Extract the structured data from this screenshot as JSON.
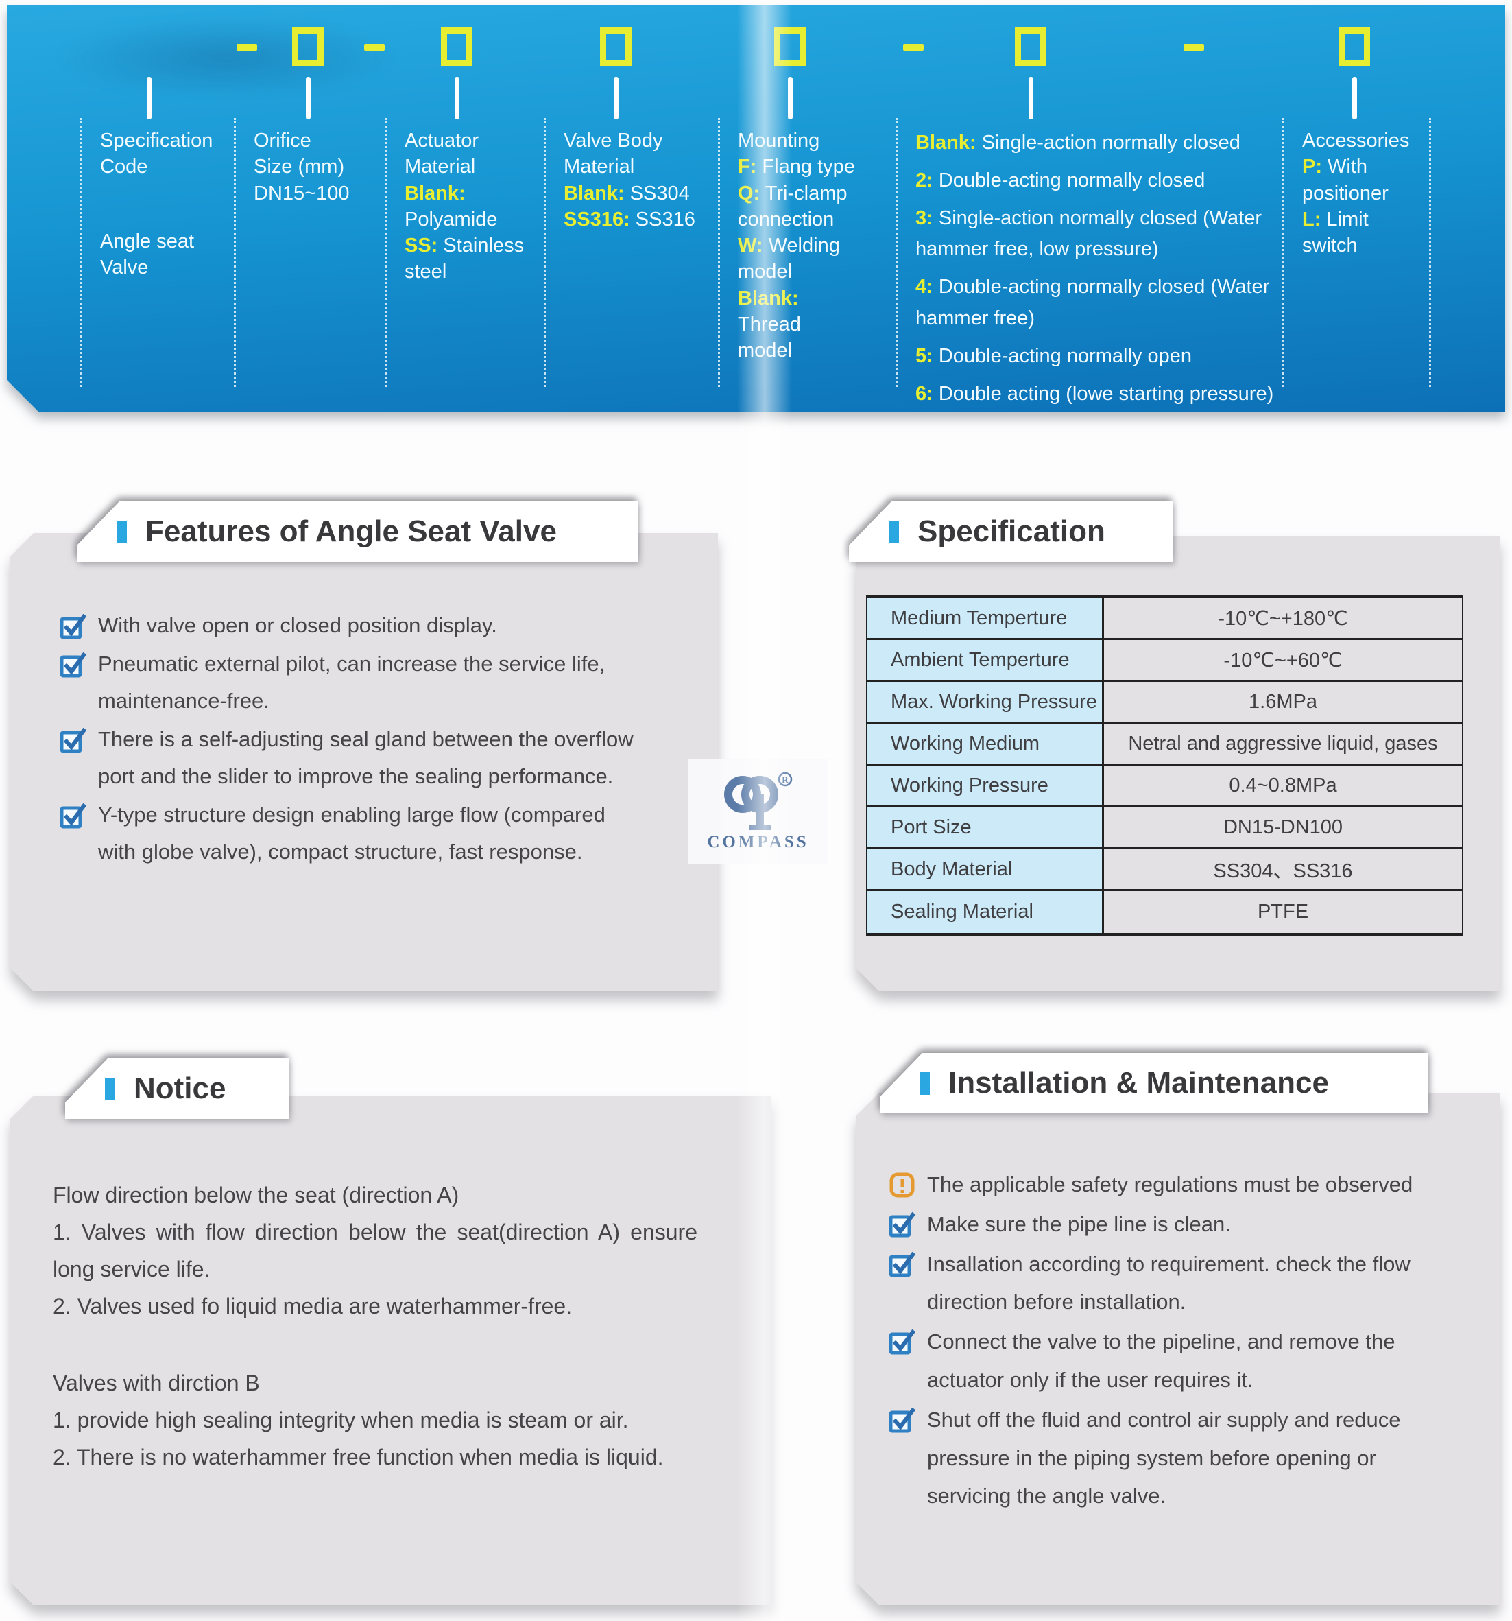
{
  "colors": {
    "accent_blue": "#2aa7e1",
    "code_yellow": "#e7ee32",
    "header_top": "#29a9e0",
    "header_bottom": "#0d70b6",
    "table_label_bg": "#cdeaf9",
    "logo_color": "#5b7ba8",
    "title_text": "#39393c"
  },
  "header": {
    "product_label_lines": [
      "Specification Code",
      "Angle seat Valve"
    ],
    "columns": [
      {
        "paras": [
          {
            "runs": [
              {
                "t": "Specification"
              }
            ]
          },
          {
            "runs": [
              {
                "t": "Code"
              }
            ]
          },
          {
            "gap": true
          },
          {
            "runs": [
              {
                "t": "Angle seat"
              }
            ]
          },
          {
            "runs": [
              {
                "t": "Valve"
              }
            ]
          }
        ]
      },
      {
        "paras": [
          {
            "runs": [
              {
                "t": "Orifice"
              }
            ]
          },
          {
            "runs": [
              {
                "t": "Size (mm)"
              }
            ]
          },
          {
            "runs": [
              {
                "t": "DN15~100"
              }
            ]
          }
        ]
      },
      {
        "paras": [
          {
            "runs": [
              {
                "t": "Actuator"
              }
            ]
          },
          {
            "runs": [
              {
                "t": "Material"
              }
            ]
          },
          {
            "runs": [
              {
                "t": "Blank:",
                "y": 1
              }
            ]
          },
          {
            "runs": [
              {
                "t": "Polyamide"
              }
            ]
          },
          {
            "runs": [
              {
                "t": "SS:",
                "y": 1
              },
              {
                "t": " Stainless"
              }
            ]
          },
          {
            "runs": [
              {
                "t": "steel"
              }
            ]
          }
        ]
      },
      {
        "paras": [
          {
            "runs": [
              {
                "t": "Valve Body"
              }
            ]
          },
          {
            "runs": [
              {
                "t": "Material"
              }
            ]
          },
          {
            "runs": [
              {
                "t": "Blank:",
                "y": 1
              },
              {
                "t": " SS304"
              }
            ]
          },
          {
            "runs": [
              {
                "t": "SS316:",
                "y": 1
              },
              {
                "t": " SS316"
              }
            ]
          }
        ]
      },
      {
        "paras": [
          {
            "runs": [
              {
                "t": "Mounting"
              }
            ]
          },
          {
            "runs": [
              {
                "t": "F:",
                "y": 1
              },
              {
                "t": " Flang type"
              }
            ]
          },
          {
            "runs": [
              {
                "t": "Q:",
                "y": 1
              },
              {
                "t": " Tri-clamp"
              }
            ]
          },
          {
            "runs": [
              {
                "t": "connection"
              }
            ]
          },
          {
            "runs": [
              {
                "t": "W:",
                "y": 1
              },
              {
                "t": " Welding"
              }
            ]
          },
          {
            "runs": [
              {
                "t": "model"
              }
            ]
          },
          {
            "runs": [
              {
                "t": "Blank:",
                "y": 1
              }
            ]
          },
          {
            "runs": [
              {
                "t": "Thread"
              }
            ]
          },
          {
            "runs": [
              {
                "t": "model"
              }
            ]
          }
        ]
      },
      {
        "paras": [
          {
            "runs": [
              {
                "t": "Blank:",
                "y": 1
              },
              {
                "t": " Single-action normally closed"
              }
            ]
          },
          {
            "runs": [
              {
                "t": "2:",
                "y": 1
              },
              {
                "t": " Double-acting normally closed"
              }
            ]
          },
          {
            "runs": [
              {
                "t": "3:",
                "y": 1
              },
              {
                "t": " Single-action normally closed (Water hammer free, low pressure)"
              }
            ]
          },
          {
            "runs": [
              {
                "t": "4:",
                "y": 1
              },
              {
                "t": " Double-acting normally closed (Water hammer free)"
              }
            ]
          },
          {
            "runs": [
              {
                "t": "5:",
                "y": 1
              },
              {
                "t": " Double-acting normally open"
              }
            ]
          },
          {
            "runs": [
              {
                "t": "6:",
                "y": 1
              },
              {
                "t": " Double acting (lowe starting pressure)"
              }
            ]
          }
        ]
      },
      {
        "paras": [
          {
            "runs": [
              {
                "t": "Accessories"
              }
            ]
          },
          {
            "runs": [
              {
                "t": "P:",
                "y": 1
              },
              {
                "t": " With"
              }
            ]
          },
          {
            "runs": [
              {
                "t": "positioner"
              }
            ]
          },
          {
            "runs": [
              {
                "t": "L:",
                "y": 1
              },
              {
                "t": " Limit"
              }
            ]
          },
          {
            "runs": [
              {
                "t": "switch"
              }
            ]
          }
        ]
      }
    ]
  },
  "features": {
    "title": "Features of Angle Seat Valve",
    "items": [
      "With valve open or closed position display.",
      "Pneumatic external pilot, can increase the service life, maintenance-free.",
      "There is a self-adjusting seal gland between the overflow port and the slider to improve the sealing performance.",
      "Y-type structure design enabling large flow (compared with globe valve), compact structure, fast response."
    ]
  },
  "spec": {
    "title": "Specification",
    "rows": [
      {
        "label": "Medium Temperture",
        "value": "-10℃~+180℃"
      },
      {
        "label": "Ambient Temperture",
        "value": "-10℃~+60℃"
      },
      {
        "label": "Max. Working Pressure",
        "value": "1.6MPa"
      },
      {
        "label": "Working Medium",
        "value": "Netral and aggressive liquid, gases"
      },
      {
        "label": "Working Pressure",
        "value": "0.4~0.8MPa"
      },
      {
        "label": "Port Size",
        "value": "DN15-DN100"
      },
      {
        "label": "Body Material",
        "value": "SS304、SS316"
      },
      {
        "label": "Sealing Material",
        "value": "PTFE"
      }
    ]
  },
  "notice": {
    "title": "Notice",
    "paras": [
      "Flow direction below the seat (direction A)",
      "1. Valves with flow direction below the seat(direction A) ensure long service life.",
      "2. Valves used fo liquid media are waterhammer-free.",
      "",
      "Valves with dirction B",
      "1.  provide high sealing integrity when media is steam or air.",
      "2.  There is no waterhammer free function when media is liquid."
    ]
  },
  "install": {
    "title": "Installation & Maintenance",
    "items": [
      {
        "icon": "warning",
        "text": "The applicable safety regulations must be observed"
      },
      {
        "icon": "check",
        "text": "Make sure the pipe line is clean."
      },
      {
        "icon": "check",
        "text": "Insallation according to requirement. check the flow direction before installation."
      },
      {
        "icon": "check",
        "text": "Connect the valve to the pipeline, and remove the actuator only if the user requires it."
      },
      {
        "icon": "check",
        "text": "Shut off the fluid and control air supply and reduce pressure in the piping system before opening or servicing the angle valve."
      }
    ]
  },
  "watermark": {
    "name": "COMPASS",
    "reg": "R"
  }
}
